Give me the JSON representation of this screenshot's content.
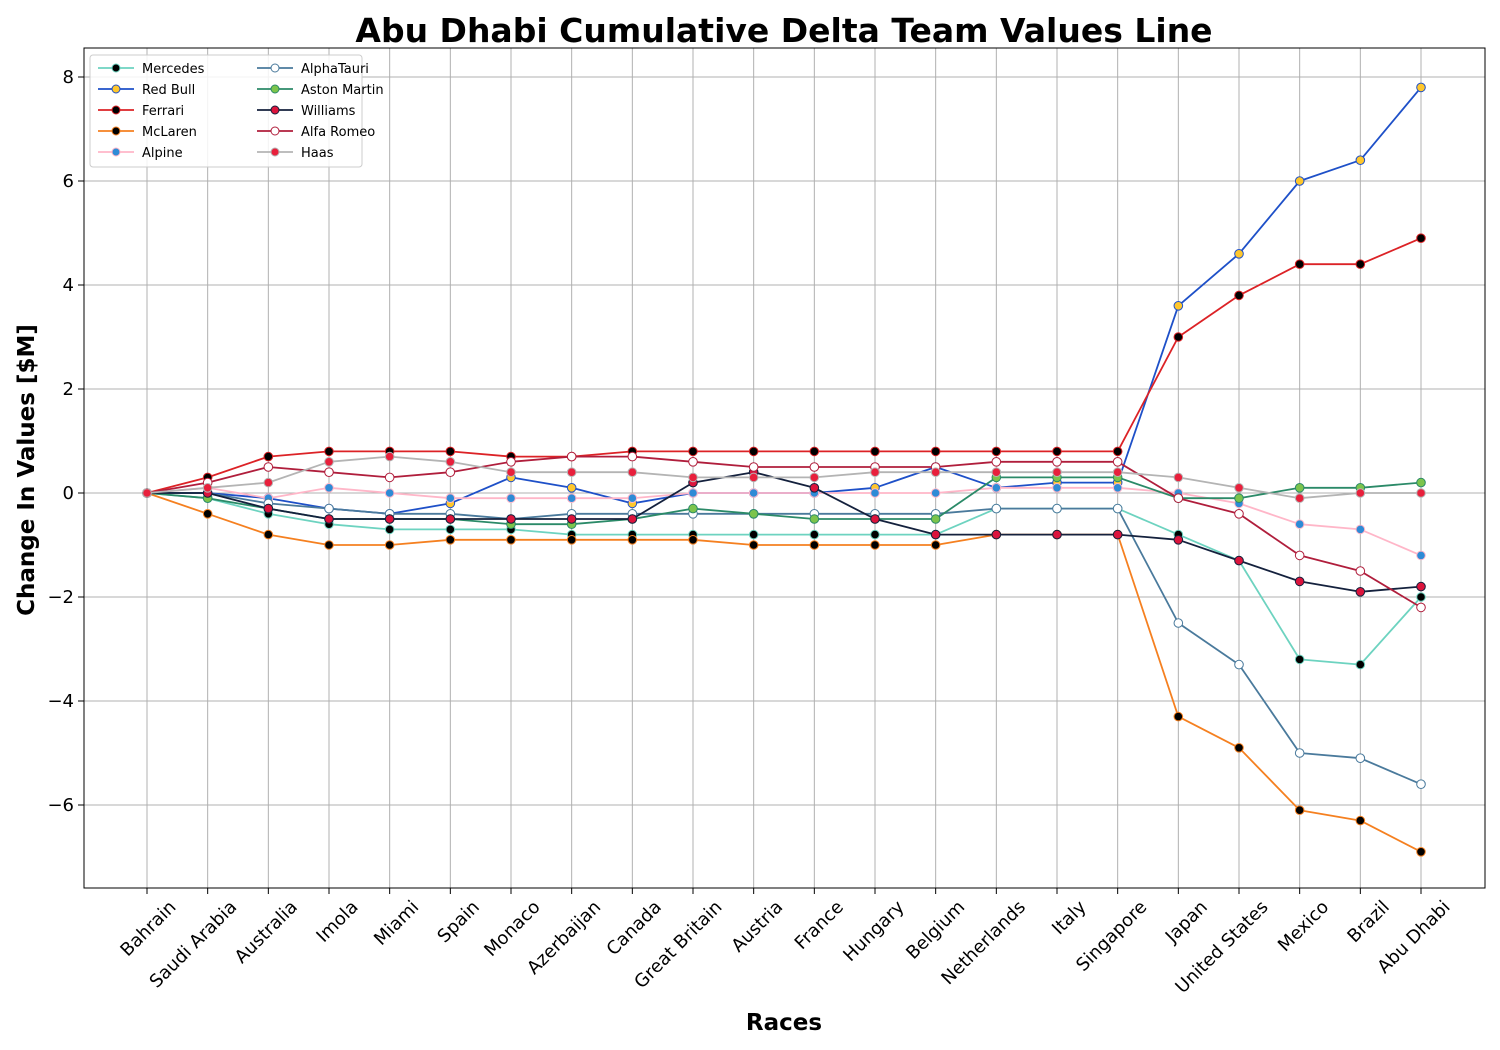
{
  "chart_data": {
    "type": "line",
    "title": "Abu Dhabi Cumulative Delta Team Values Line",
    "xlabel": "Races",
    "ylabel": "Change In Values [$M]",
    "ylim": [
      -7.5,
      8.5
    ],
    "yticks": [
      -6,
      -4,
      -2,
      0,
      2,
      4,
      6,
      8
    ],
    "ytick_labels": [
      "−6",
      "−4",
      "−2",
      "0",
      "2",
      "4",
      "6",
      "8"
    ],
    "grid": true,
    "legend_position": "top-left",
    "legend_columns": 2,
    "categories": [
      "Bahrain",
      "Saudi Arabia",
      "Australia",
      "Imola",
      "Miami",
      "Spain",
      "Monaco",
      "Azerbaijan",
      "Canada",
      "Great Britain",
      "Austria",
      "France",
      "Hungary",
      "Belgium",
      "Netherlands",
      "Italy",
      "Singapore",
      "Japan",
      "United States",
      "Mexico",
      "Brazil",
      "Abu Dhabi"
    ],
    "series": [
      {
        "name": "Mercedes",
        "color": "#6dd3c0",
        "marker_fill": "#000000",
        "marker_edge": "#6dd3c0",
        "values": [
          0,
          -0.1,
          -0.4,
          -0.6,
          -0.7,
          -0.7,
          -0.7,
          -0.8,
          -0.8,
          -0.8,
          -0.8,
          -0.8,
          -0.8,
          -0.8,
          -0.3,
          -0.3,
          -0.3,
          -0.8,
          -1.3,
          -3.2,
          -3.3,
          -2.0
        ]
      },
      {
        "name": "Red Bull",
        "color": "#1e50c8",
        "marker_fill": "#ffc72c",
        "marker_edge": "#1e50c8",
        "values": [
          0,
          0,
          -0.1,
          -0.3,
          -0.4,
          -0.2,
          0.3,
          0.1,
          -0.2,
          0,
          0,
          0,
          0.1,
          0.5,
          0.1,
          0.2,
          0.2,
          3.6,
          4.6,
          6.0,
          6.4,
          7.8
        ]
      },
      {
        "name": "Ferrari",
        "color": "#dc2226",
        "marker_fill": "#000000",
        "marker_edge": "#dc2226",
        "values": [
          0,
          0.3,
          0.7,
          0.8,
          0.8,
          0.8,
          0.7,
          0.7,
          0.8,
          0.8,
          0.8,
          0.8,
          0.8,
          0.8,
          0.8,
          0.8,
          0.8,
          3.0,
          3.8,
          4.4,
          4.4,
          4.9
        ]
      },
      {
        "name": "McLaren",
        "color": "#f58020",
        "marker_fill": "#000000",
        "marker_edge": "#f58020",
        "values": [
          0,
          -0.4,
          -0.8,
          -1.0,
          -1.0,
          -0.9,
          -0.9,
          -0.9,
          -0.9,
          -0.9,
          -1.0,
          -1.0,
          -1.0,
          -1.0,
          -0.8,
          -0.8,
          -0.8,
          -4.3,
          -4.9,
          -6.1,
          -6.3,
          -6.9
        ]
      },
      {
        "name": "Alpine",
        "color": "#ffb6c8",
        "marker_fill": "#2e8bd6",
        "marker_edge": "#ffb6c8",
        "values": [
          0,
          0.1,
          -0.1,
          0.1,
          0,
          -0.1,
          -0.1,
          -0.1,
          -0.1,
          0,
          0,
          0,
          0,
          0,
          0.1,
          0.1,
          0.1,
          0,
          -0.2,
          -0.6,
          -0.7,
          -1.2
        ]
      },
      {
        "name": "AlphaTauri",
        "color": "#4a7a9c",
        "marker_fill": "#ffffff",
        "marker_edge": "#4a7a9c",
        "values": [
          0,
          0,
          -0.2,
          -0.3,
          -0.4,
          -0.4,
          -0.5,
          -0.4,
          -0.4,
          -0.4,
          -0.4,
          -0.4,
          -0.4,
          -0.4,
          -0.3,
          -0.3,
          -0.3,
          -2.5,
          -3.3,
          -5.0,
          -5.1,
          -5.6
        ]
      },
      {
        "name": "Aston Martin",
        "color": "#2b8a68",
        "marker_fill": "#7cc44c",
        "marker_edge": "#2b8a68",
        "values": [
          0,
          -0.1,
          -0.3,
          -0.5,
          -0.5,
          -0.5,
          -0.6,
          -0.6,
          -0.5,
          -0.3,
          -0.4,
          -0.5,
          -0.5,
          -0.5,
          0.3,
          0.3,
          0.3,
          -0.1,
          -0.1,
          0.1,
          0.1,
          0.2
        ]
      },
      {
        "name": "Williams",
        "color": "#14213d",
        "marker_fill": "#dc143c",
        "marker_edge": "#14213d",
        "values": [
          0,
          0,
          -0.3,
          -0.5,
          -0.5,
          -0.5,
          -0.5,
          -0.5,
          -0.5,
          0.2,
          0.4,
          0.1,
          -0.5,
          -0.8,
          -0.8,
          -0.8,
          -0.8,
          -0.9,
          -1.3,
          -1.7,
          -1.9,
          -1.8
        ]
      },
      {
        "name": "Alfa Romeo",
        "color": "#b01e3c",
        "marker_fill": "#ffffff",
        "marker_edge": "#b01e3c",
        "values": [
          0,
          0.2,
          0.5,
          0.4,
          0.3,
          0.4,
          0.6,
          0.7,
          0.7,
          0.6,
          0.5,
          0.5,
          0.5,
          0.5,
          0.6,
          0.6,
          0.6,
          -0.1,
          -0.4,
          -1.2,
          -1.5,
          -2.2
        ]
      },
      {
        "name": "Haas",
        "color": "#b4b4b4",
        "marker_fill": "#e8203c",
        "marker_edge": "#b4b4b4",
        "values": [
          0,
          0.1,
          0.2,
          0.6,
          0.7,
          0.6,
          0.4,
          0.4,
          0.4,
          0.3,
          0.3,
          0.3,
          0.4,
          0.4,
          0.4,
          0.4,
          0.4,
          0.3,
          0.1,
          -0.1,
          0,
          0
        ]
      }
    ]
  }
}
